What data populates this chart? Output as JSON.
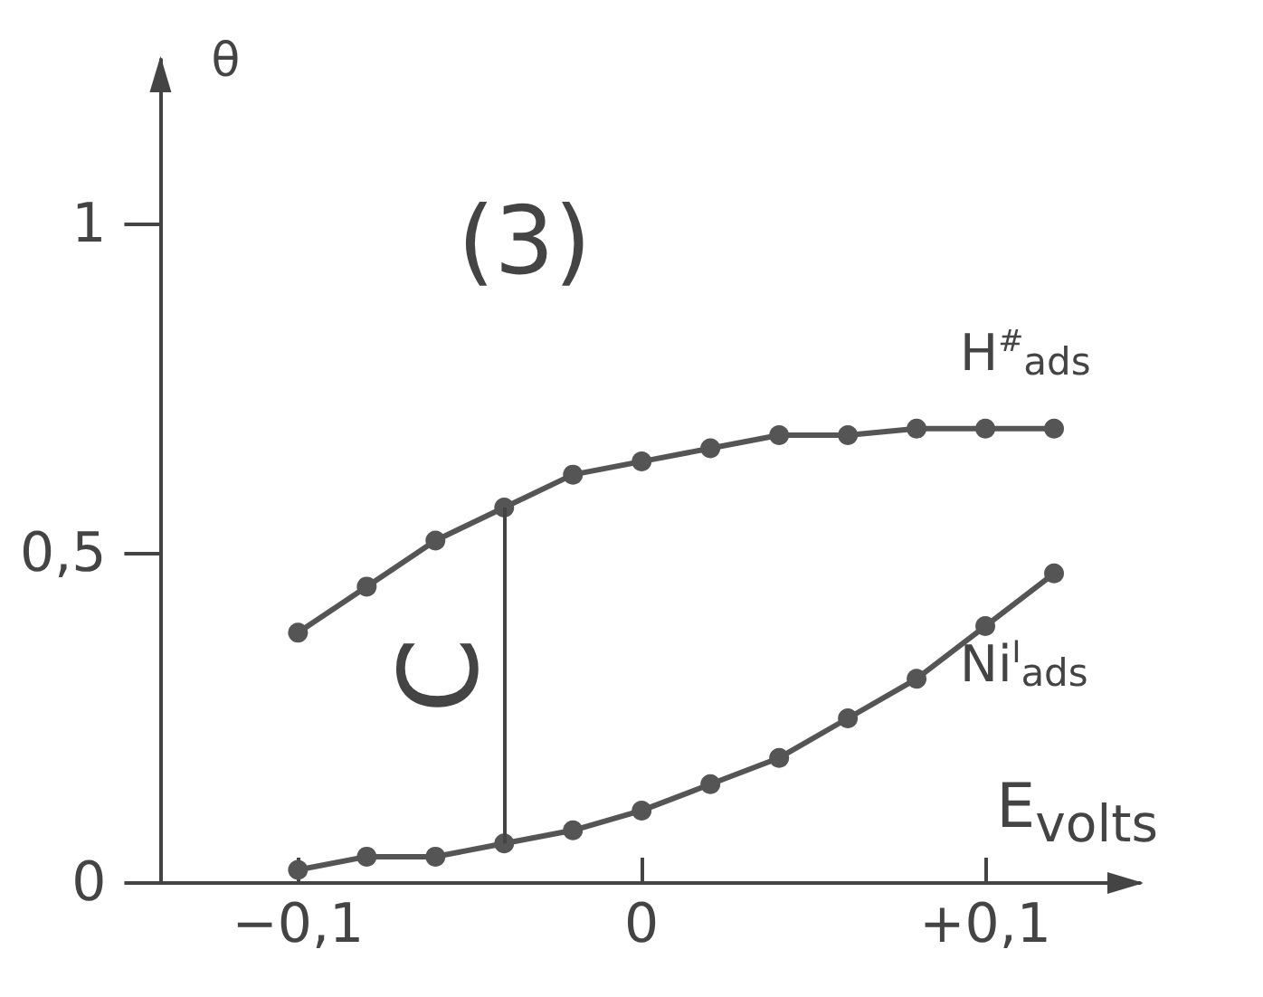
{
  "chart_data": {
    "type": "line",
    "title": "(3)",
    "xlabel": "E$_{volts}$",
    "ylabel": "θ",
    "x": [
      -0.1,
      -0.08,
      -0.06,
      -0.04,
      -0.02,
      0,
      0.02,
      0.04,
      0.06,
      0.08,
      0.1,
      0.12
    ],
    "series": [
      {
        "name": "H$^{#}$$_{ads}$",
        "color": "#555555",
        "values": [
          0.38,
          0.45,
          0.52,
          0.57,
          0.62,
          0.64,
          0.66,
          0.68,
          0.68,
          0.69,
          0.69,
          0.69
        ]
      },
      {
        "name": "Ni$^{I}$$_{ads}$",
        "color": "#555555",
        "values": [
          0.02,
          0.04,
          0.04,
          0.06,
          0.08,
          0.11,
          0.15,
          0.19,
          0.25,
          0.31,
          0.39,
          0.47
        ]
      }
    ],
    "annotations": [
      {
        "text": "C",
        "x": -0.04
      }
    ],
    "xlim": [
      -0.14,
      0.145
    ],
    "ylim": [
      0,
      1.25
    ],
    "xticks": [
      {
        "value": -0.1,
        "label": "−0,1"
      },
      0,
      {
        "value": 0.1,
        "label": "+0,1"
      }
    ],
    "yticks": [
      0,
      {
        "value": 0.5,
        "label": "0,5"
      },
      1
    ],
    "grid": false,
    "marker": "circle",
    "line_style": "solid"
  }
}
